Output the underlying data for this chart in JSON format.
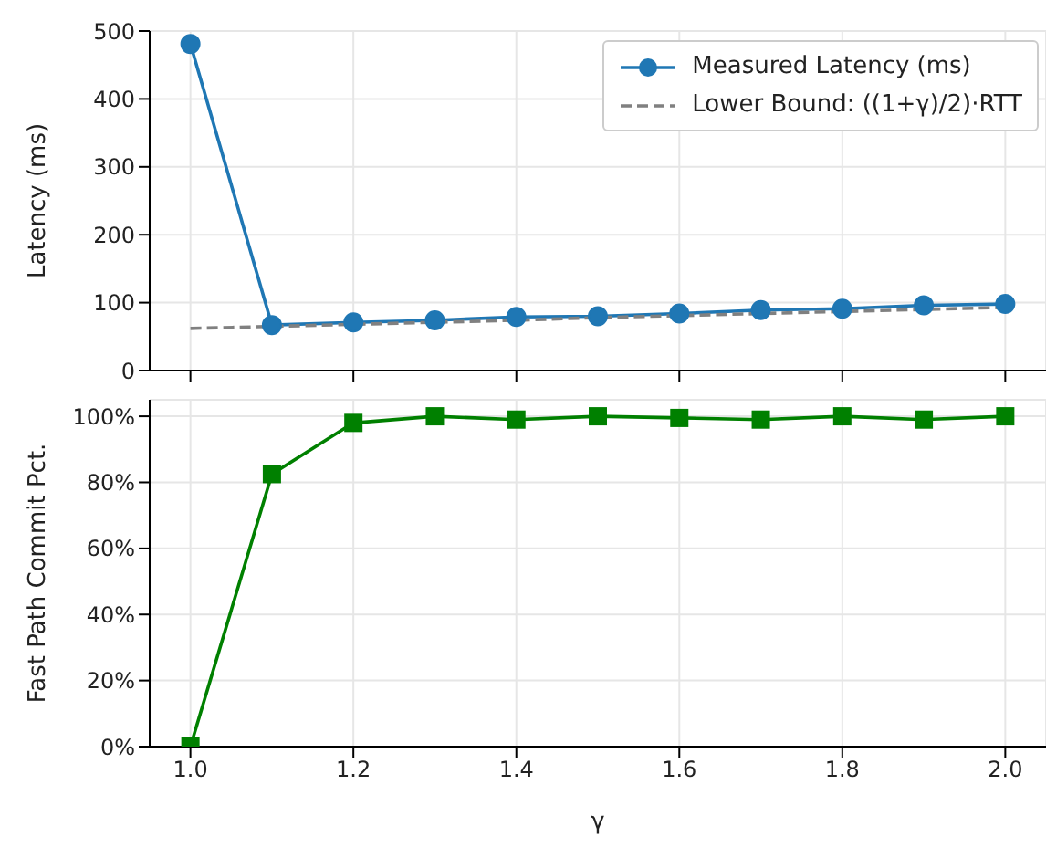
{
  "chart_data": [
    {
      "type": "line",
      "ylabel": "Latency (ms)",
      "x": [
        1.0,
        1.1,
        1.2,
        1.3,
        1.4,
        1.5,
        1.6,
        1.7,
        1.8,
        1.9,
        2.0
      ],
      "series": [
        {
          "name": "Measured Latency (ms)",
          "color": "#1f77b4",
          "marker": "circle",
          "line_style": "solid",
          "values": [
            481,
            67,
            71,
            74,
            79,
            80,
            84,
            89,
            91,
            96,
            98
          ]
        },
        {
          "name": "Lower Bound: ((1+γ)/2)·RTT",
          "color": "#808080",
          "marker": "none",
          "line_style": "dashed",
          "values": [
            62,
            65,
            68,
            71,
            74,
            78,
            81,
            84,
            87,
            90,
            93
          ]
        }
      ],
      "xlim": [
        0.95,
        2.05
      ],
      "xticks": [
        {
          "value": 1,
          "label": null
        },
        {
          "value": 1.2,
          "label": null
        },
        {
          "value": 1.4,
          "label": null
        },
        {
          "value": 1.6,
          "label": null
        },
        {
          "value": 1.8,
          "label": null
        },
        {
          "value": 2,
          "label": null
        }
      ],
      "ylim": [
        0,
        500
      ],
      "yticks": [
        0,
        100,
        200,
        300,
        400,
        500
      ],
      "tick_labels": "y",
      "grid": true,
      "legend": "top right"
    },
    {
      "type": "line",
      "xlabel": "γ",
      "ylabel": "Fast Path Commit Pct.",
      "x": [
        1.0,
        1.1,
        1.2,
        1.3,
        1.4,
        1.5,
        1.6,
        1.7,
        1.8,
        1.9,
        2.0
      ],
      "series": [
        {
          "color": "#008000",
          "marker": "square",
          "line_style": "solid",
          "values": [
            0,
            82.5,
            98,
            100,
            99,
            100,
            99.5,
            99,
            100,
            99,
            100
          ]
        }
      ],
      "xlim": [
        0.95,
        2.05
      ],
      "xticks": [
        {
          "value": 1,
          "label": "1.0"
        },
        {
          "value": 1.2,
          "label": "1.2"
        },
        {
          "value": 1.4,
          "label": "1.4"
        },
        {
          "value": 1.6,
          "label": "1.6"
        },
        {
          "value": 1.8,
          "label": "1.8"
        },
        {
          "value": 2,
          "label": "2.0"
        }
      ],
      "ylim": [
        0,
        105
      ],
      "yticks": [
        {
          "value": 0,
          "label": "0%"
        },
        {
          "value": 20,
          "label": "20%"
        },
        {
          "value": 40,
          "label": "40%"
        },
        {
          "value": 60,
          "label": "60%"
        },
        {
          "value": 80,
          "label": "80%"
        },
        {
          "value": 100,
          "label": "100%"
        }
      ],
      "grid": true
    }
  ]
}
